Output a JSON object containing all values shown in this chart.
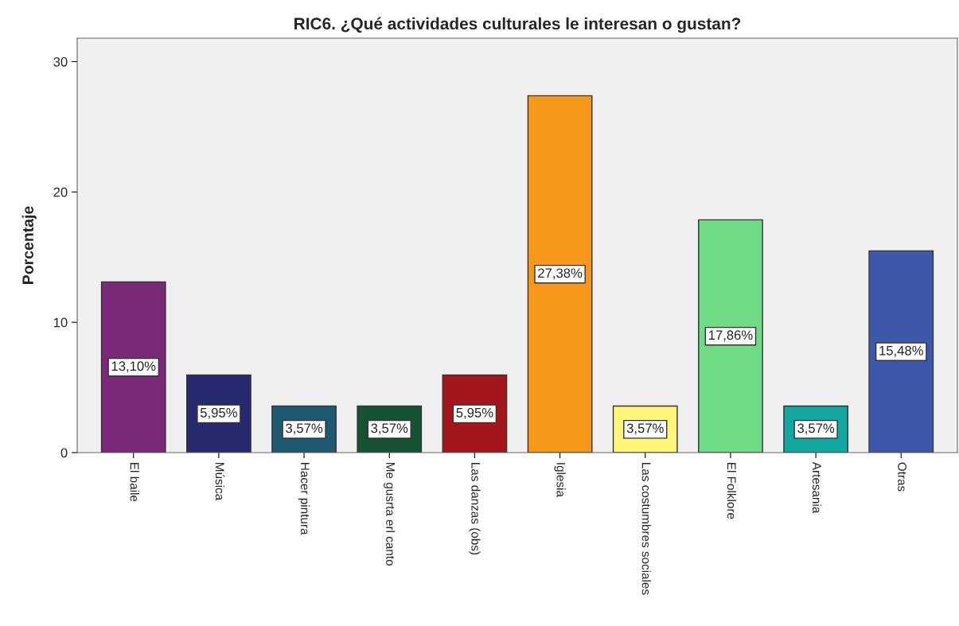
{
  "chart_data": {
    "type": "bar",
    "title": "RIC6. ¿Qué actividades culturales le interesan o gustan?",
    "ylabel": "Porcentaje",
    "categories": [
      "El baile",
      "Música",
      "Hacer pintura",
      "Me gusrta erl canto",
      "Las danzas (obs)",
      "Iglesia",
      "Las costumbres sociales",
      "El Folklore",
      "Artesania",
      "Otras"
    ],
    "values": [
      13.1,
      5.95,
      3.57,
      3.57,
      5.95,
      27.38,
      3.57,
      17.86,
      3.57,
      15.48
    ],
    "value_labels": [
      "13,10%",
      "5,95%",
      "3,57%",
      "3,57%",
      "5,95%",
      "27,38%",
      "3,57%",
      "17,86%",
      "3,57%",
      "15,48%"
    ],
    "colors": [
      "#7b2a7a",
      "#272a6f",
      "#1e5a72",
      "#155232",
      "#a3171c",
      "#f7981d",
      "#fdf47a",
      "#70db85",
      "#14a6a0",
      "#3d58a9"
    ],
    "ylim": [
      0,
      31.8
    ],
    "yticks": [
      0,
      10,
      20,
      30
    ],
    "grid": false
  }
}
